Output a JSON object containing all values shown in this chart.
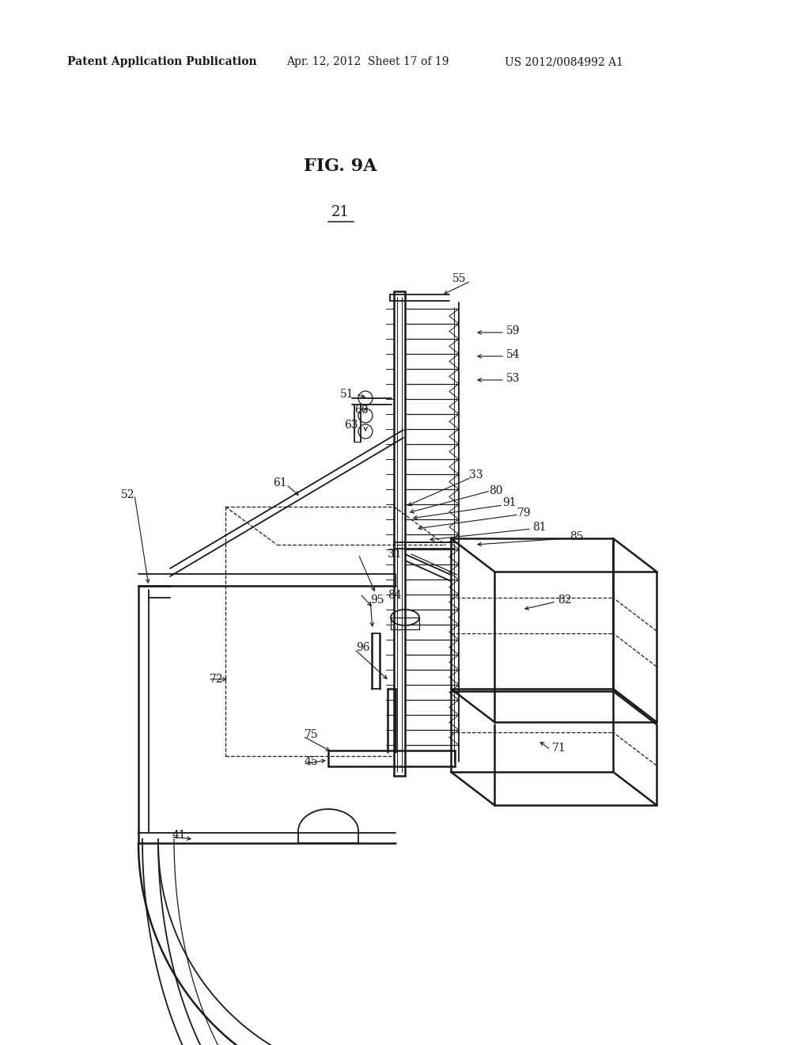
{
  "bg_color": "#ffffff",
  "line_color": "#1a1a1a",
  "text_color": "#1a1a1a",
  "header_left": "Patent Application Publication",
  "header_mid": "Apr. 12, 2012  Sheet 17 of 19",
  "header_right": "US 2012/0084992 A1",
  "fig_label": "FIG. 9A",
  "part_label": "21"
}
